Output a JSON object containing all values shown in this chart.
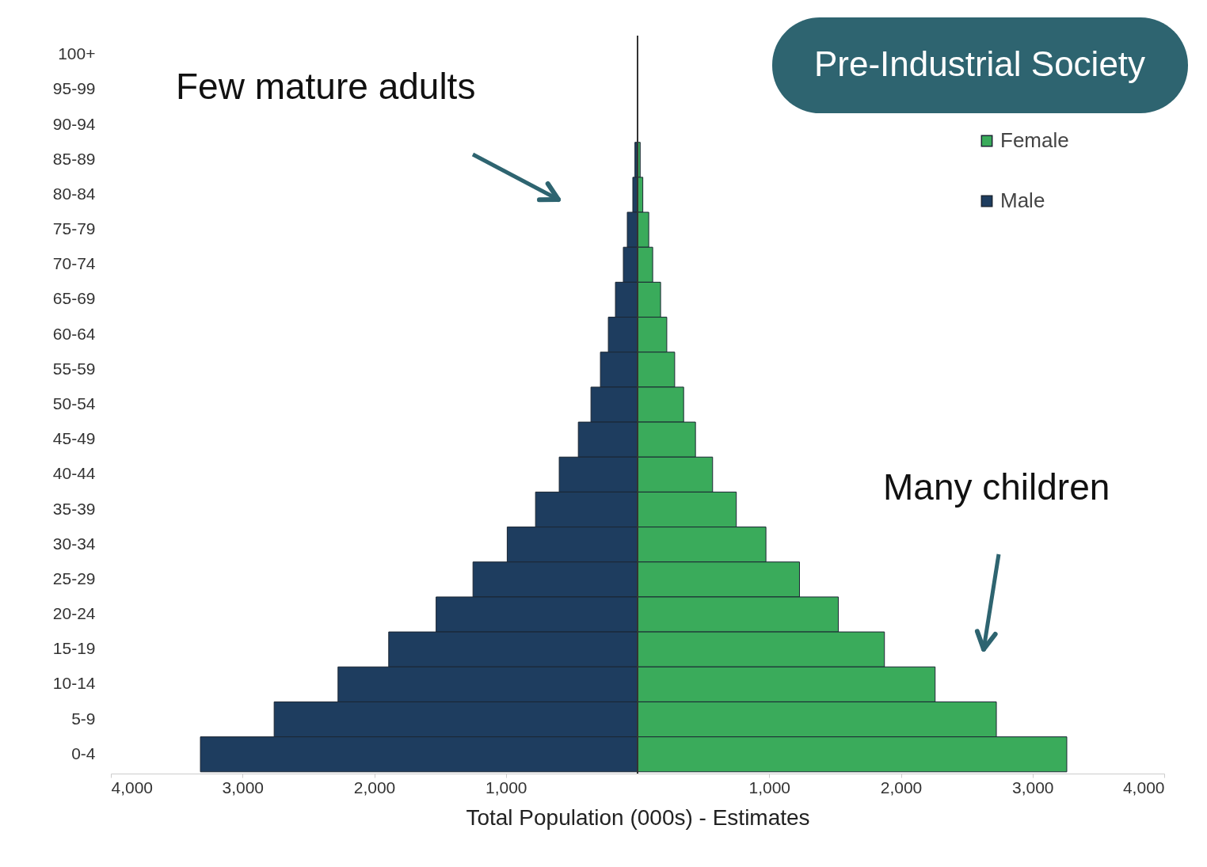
{
  "chart_data": {
    "type": "bar",
    "orientation": "horizontal",
    "stacked": true,
    "title": "Pre-Industrial Society",
    "xlabel": "Total Population (000s) - Estimates",
    "annotations": [
      "Few mature adults",
      "Many children"
    ],
    "categories": [
      "100+",
      "95-99",
      "90-94",
      "85-89",
      "80-84",
      "75-79",
      "70-74",
      "65-69",
      "60-64",
      "55-59",
      "50-54",
      "45-49",
      "40-44",
      "35-39",
      "30-34",
      "25-29",
      "20-24",
      "15-19",
      "10-14",
      "5-9",
      "0-4"
    ],
    "series": [
      {
        "name": "Female",
        "color": "#3aab5b",
        "values": [
          0,
          null,
          null,
          20,
          40,
          85,
          115,
          175,
          222,
          282,
          350,
          440,
          570,
          750,
          975,
          1230,
          1525,
          1875,
          2260,
          2725,
          3260
        ]
      },
      {
        "name": "Male",
        "color": "#1e3d5f",
        "values": [
          0,
          null,
          null,
          -20,
          -36,
          -78,
          -108,
          -168,
          -222,
          -282,
          -354,
          -450,
          -595,
          -775,
          -990,
          -1250,
          -1530,
          -1890,
          -2275,
          -2760,
          -3320
        ]
      }
    ],
    "xlim": [
      -4000,
      4000
    ],
    "xticks": [
      {
        "value": -4000,
        "label": "4,000"
      },
      {
        "value": -3000,
        "label": "3,000"
      },
      {
        "value": -2000,
        "label": "2,000"
      },
      {
        "value": -1000,
        "label": "1,000"
      },
      {
        "value": 1000,
        "label": "1,000"
      },
      {
        "value": 2000,
        "label": "2,000"
      },
      {
        "value": 3000,
        "label": "3,000"
      },
      {
        "value": 4000,
        "label": "4,000"
      }
    ],
    "ref_lines": [
      {
        "axis": "x",
        "value": 0,
        "color": "#333333"
      }
    ],
    "legend": "top right"
  }
}
